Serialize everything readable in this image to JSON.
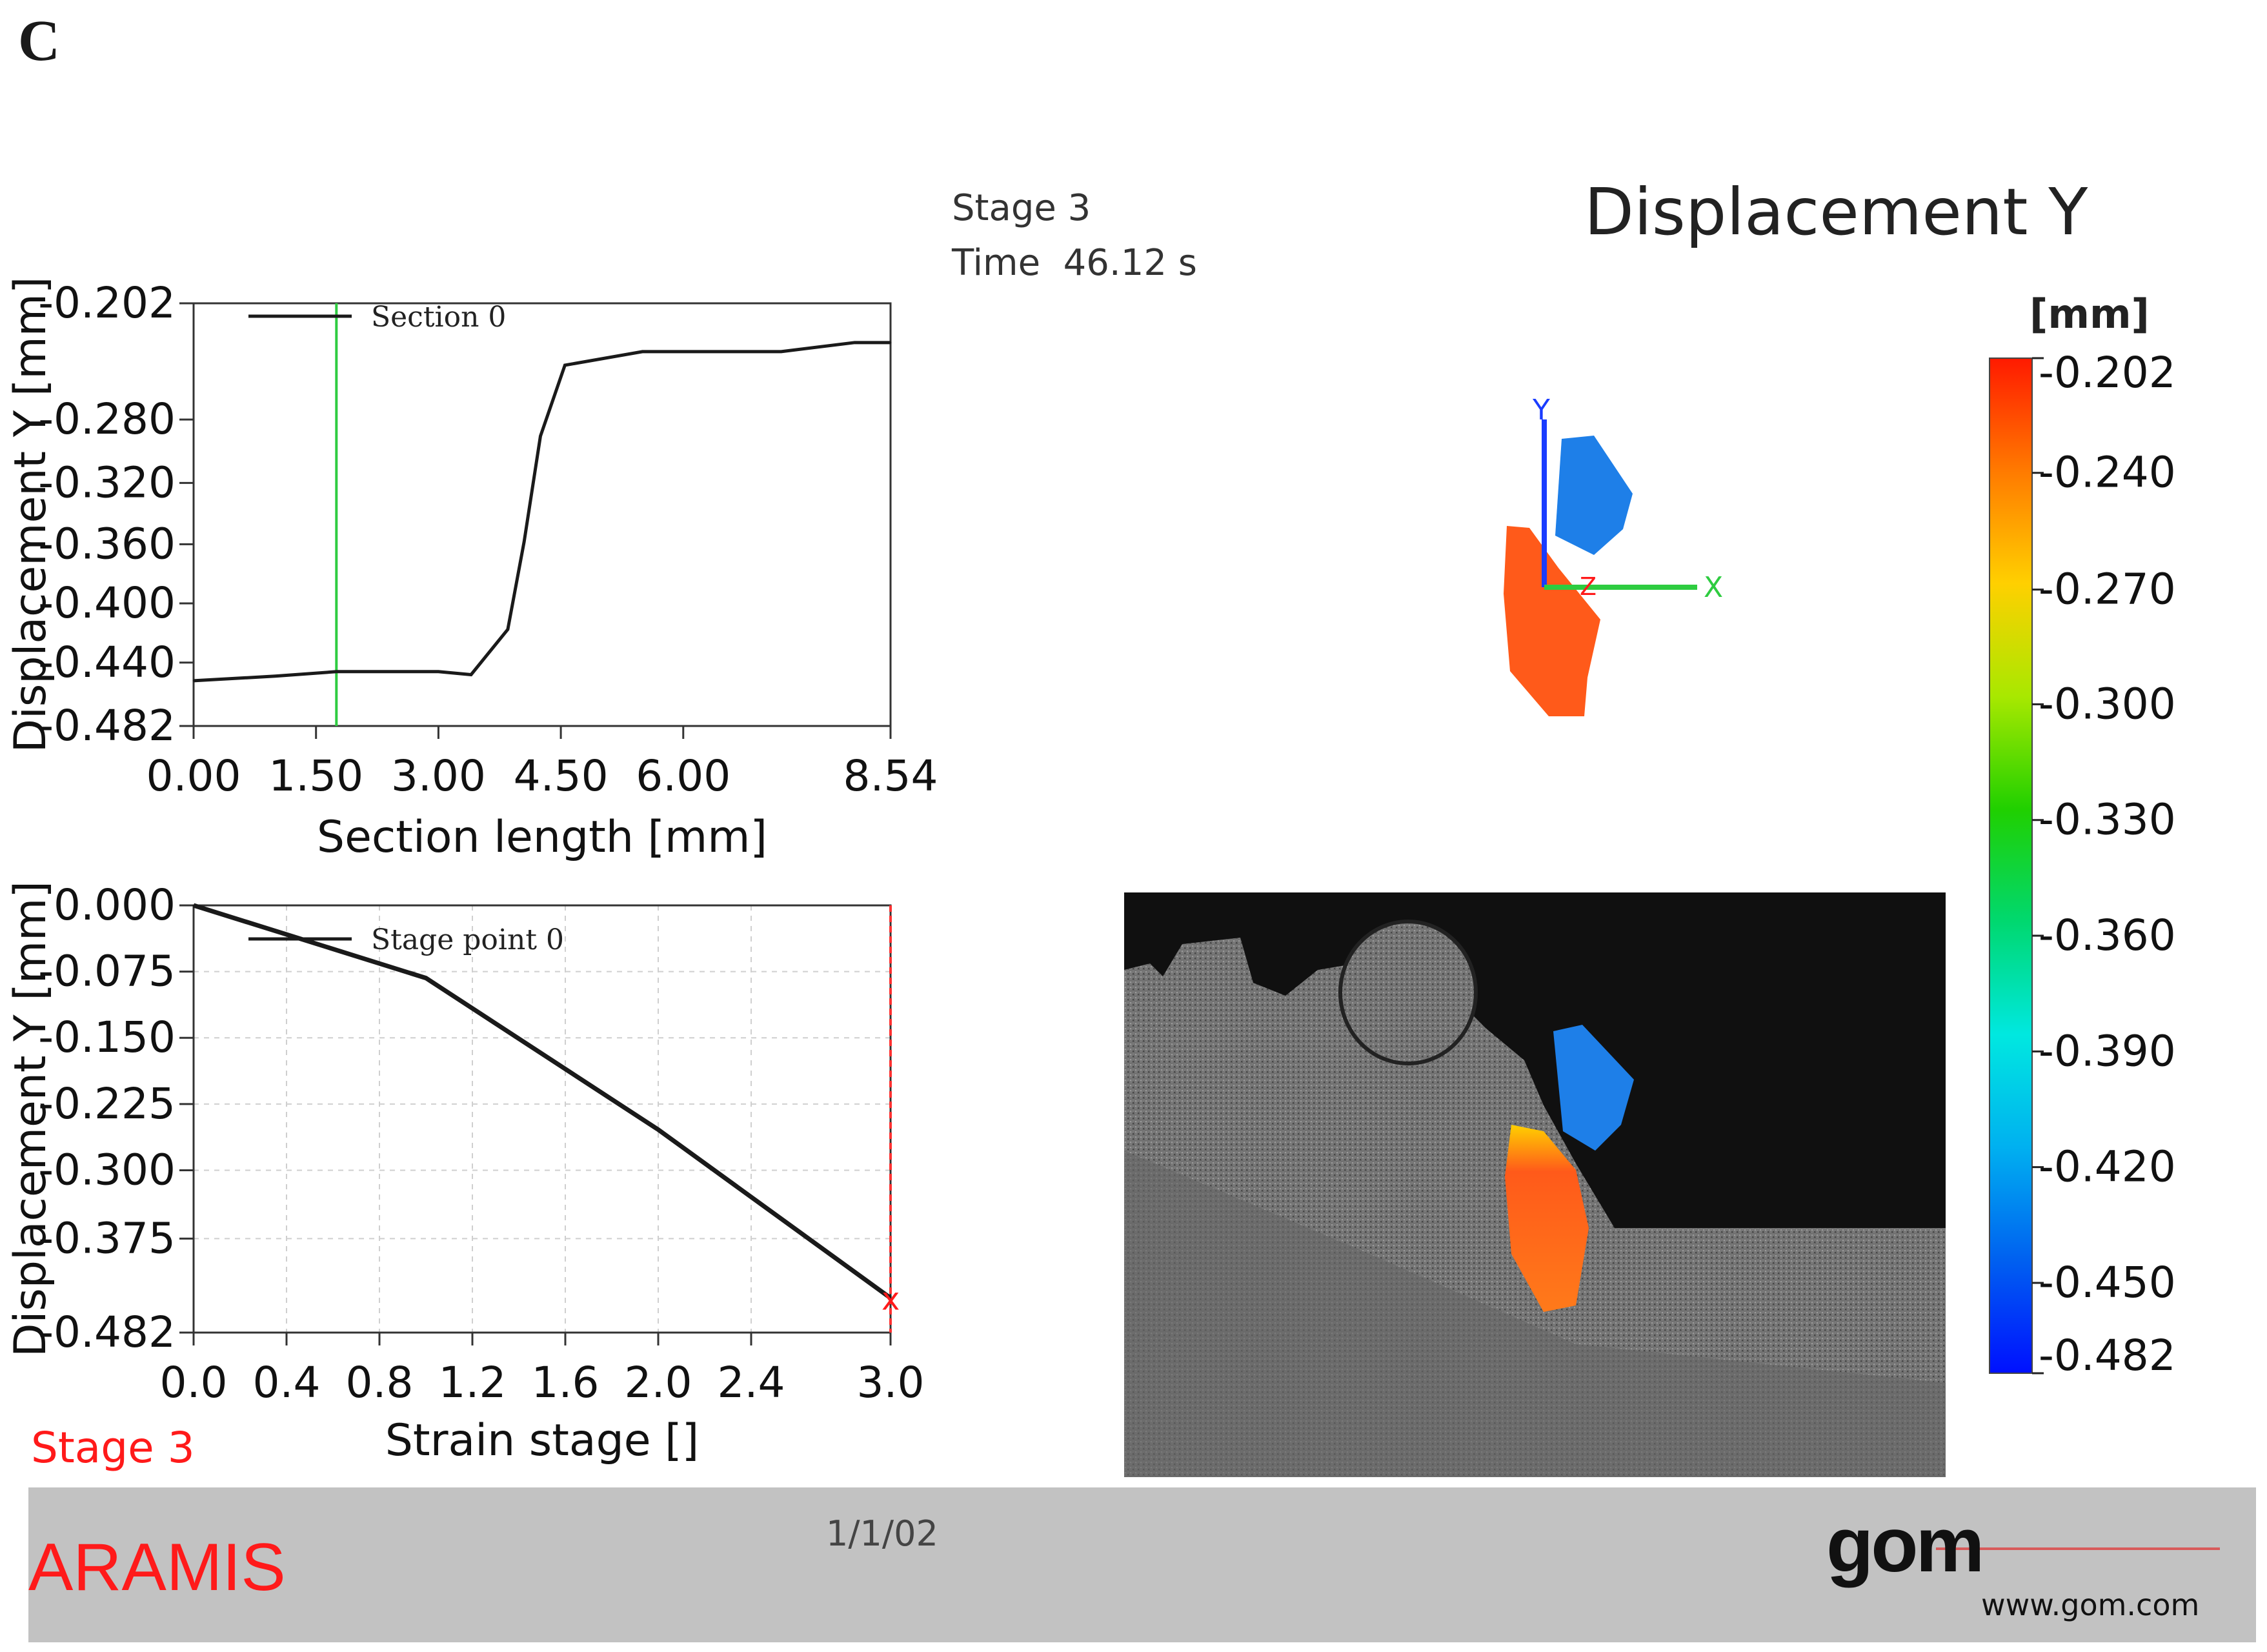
{
  "panel_letter": "C",
  "stage_info": {
    "stage": "Stage 3",
    "time": "Time  46.12 s"
  },
  "bottom_stage_label": "Stage 3",
  "colorbar": {
    "title": "Displacement Y",
    "unit": "[mm]",
    "ticks": [
      "-0.202",
      "-0.240",
      "-0.270",
      "-0.300",
      "-0.330",
      "-0.360",
      "-0.390",
      "-0.420",
      "-0.450",
      "-0.482"
    ],
    "colors": [
      "#ff1a00",
      "#ff7a00",
      "#ffd000",
      "#a8e800",
      "#20d000",
      "#00d870",
      "#00e8e0",
      "#00b0f0",
      "#0060f0",
      "#0010ff"
    ]
  },
  "axes_triad": {
    "x": "X",
    "y": "Y",
    "z": "Z"
  },
  "footer": {
    "brand": "ARAMIS",
    "date": "1/1/02",
    "logo": "gom",
    "website": "www.gom.com"
  },
  "chart_data": [
    {
      "type": "line",
      "title": "",
      "xlabel": "Section length [mm]",
      "ylabel": "Displacement Y [mm]",
      "xlim": [
        0,
        8.54
      ],
      "ylim": [
        -0.482,
        -0.202
      ],
      "xticks": [
        "0.00",
        "1.50",
        "3.00",
        "4.50",
        "6.00",
        "8.54"
      ],
      "yticks": [
        "-0.202",
        "-0.280",
        "-0.320",
        "-0.360",
        "-0.400",
        "-0.440",
        "-0.482"
      ],
      "legend": "top-left",
      "grid": false,
      "series": [
        {
          "name": "Section 0",
          "color": "#1a1a1a",
          "x": [
            0.0,
            1.0,
            1.75,
            3.0,
            3.4,
            3.85,
            4.05,
            4.25,
            4.55,
            5.5,
            7.2,
            8.1,
            8.54
          ],
          "y": [
            -0.452,
            -0.449,
            -0.446,
            -0.446,
            -0.448,
            -0.418,
            -0.36,
            -0.29,
            -0.243,
            -0.234,
            -0.234,
            -0.228,
            -0.228
          ]
        }
      ],
      "marker_line": {
        "x": 1.75,
        "color": "#2ecc40"
      }
    },
    {
      "type": "line",
      "title": "",
      "xlabel": "Strain stage []",
      "ylabel": "Displacement Y [mm]",
      "xlim": [
        0,
        3.0
      ],
      "ylim": [
        -0.482,
        0.0
      ],
      "xticks": [
        "0.0",
        "0.4",
        "0.8",
        "1.2",
        "1.6",
        "2.0",
        "2.4",
        "3.0"
      ],
      "yticks": [
        "0.000",
        "-0.075",
        "-0.150",
        "-0.225",
        "-0.300",
        "-0.375",
        "-0.482"
      ],
      "legend": "top-left",
      "grid": true,
      "series": [
        {
          "name": "Stage point 0",
          "color": "#1a1a1a",
          "x": [
            0.0,
            1.0,
            2.0,
            3.0
          ],
          "y": [
            0.0,
            -0.082,
            -0.253,
            -0.443
          ]
        }
      ],
      "marker_line": {
        "x": 3.0,
        "color": "#ff3333"
      }
    }
  ]
}
